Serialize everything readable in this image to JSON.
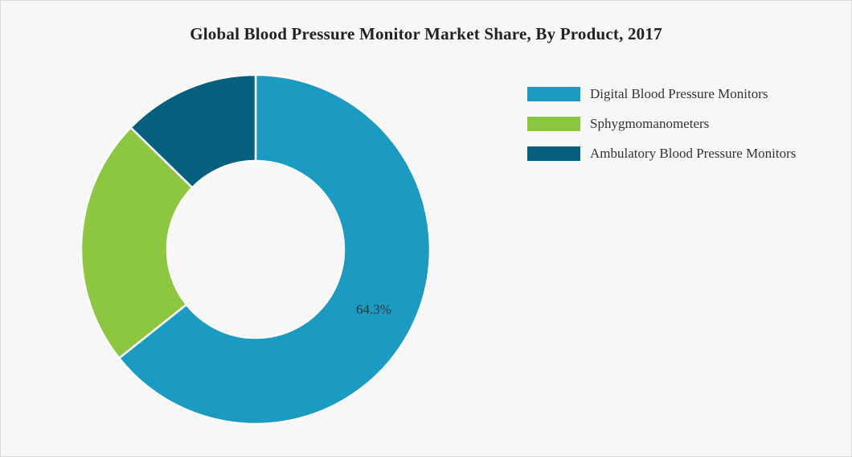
{
  "chart_data": {
    "type": "pie",
    "variant": "donut",
    "title": "Global Blood Pressure Monitor Market Share, By Product, 2017",
    "categories": [
      "Digital Blood Pressure Monitors",
      "Sphygmomanometers",
      "Ambulatory Blood Pressure Monitors"
    ],
    "values": [
      64.3,
      23.0,
      12.7
    ],
    "colors": [
      "#1b9ac2",
      "#8dc63f",
      "#05607f"
    ],
    "data_labels": [
      "64.3%",
      "",
      ""
    ],
    "legend_position": "top-right"
  }
}
